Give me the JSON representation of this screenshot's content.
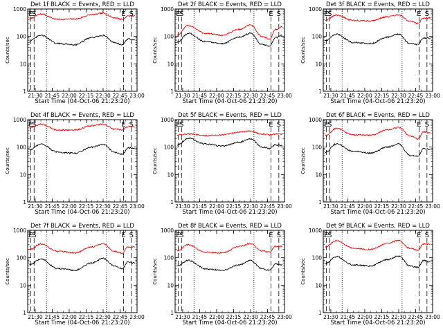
{
  "chart_data": [
    {
      "type": "line",
      "title": "Det 1f BLACK = Events, RED = LLD",
      "xlabel": "Start Time (04-Oct-06 21:23:20)",
      "ylabel": "Counts/sec",
      "y_scale": "log",
      "ylim": [
        1,
        1000
      ],
      "xlim": [
        "21:23:20",
        "23:00:00"
      ],
      "x_ticks": [
        "21:30",
        "21:45",
        "22:00",
        "22:15",
        "22:30",
        "22:45",
        "23:00"
      ],
      "y_ticks": [
        "1",
        "10",
        "100",
        "1000"
      ],
      "markers": {
        "solid_dashed": [
          "21:26",
          "21:29",
          "22:48",
          "22:55"
        ],
        "dotted": [
          "21:40",
          "22:33"
        ],
        "letters": [
          {
            "text": "E",
            "at": "21:26"
          },
          {
            "text": "S",
            "at": "21:29"
          },
          {
            "text": "E",
            "at": "22:48"
          },
          {
            "text": "S",
            "at": "22:55"
          }
        ]
      },
      "series": [
        {
          "name": "LLD",
          "color": "#ff0000",
          "x": [
            "21:25",
            "21:35",
            "21:50",
            "22:05",
            "22:20",
            "22:30",
            "22:40",
            "22:47",
            "22:52",
            "22:58"
          ],
          "values": [
            450,
            650,
            420,
            430,
            620,
            700,
            480,
            420,
            560,
            560
          ]
        },
        {
          "name": "Events",
          "color": "#000000",
          "x": [
            "21:25",
            "21:35",
            "21:50",
            "22:05",
            "22:20",
            "22:30",
            "22:40",
            "22:47",
            "22:52",
            "22:58"
          ],
          "values": [
            70,
            110,
            55,
            50,
            90,
            110,
            60,
            50,
            80,
            75
          ]
        }
      ]
    },
    {
      "type": "line",
      "title": "Det 2f BLACK = Events, RED = LLD",
      "xlabel": "Start Time (04-Oct-06 21:23:20)",
      "ylabel": "Counts/sec",
      "y_scale": "log",
      "ylim": [
        1,
        1000
      ],
      "xlim": [
        "21:23:20",
        "23:00:00"
      ],
      "x_ticks": [
        "21:30",
        "21:45",
        "22:00",
        "22:15",
        "22:30",
        "22:45",
        "23:00"
      ],
      "y_ticks": [
        "1",
        "10",
        "100",
        "1000"
      ],
      "markers": {
        "solid_dashed": [
          "21:26",
          "21:29",
          "22:48",
          "22:55"
        ],
        "dotted": [
          "21:40",
          "22:33"
        ],
        "letters": [
          {
            "text": "E",
            "at": "21:26"
          },
          {
            "text": "S",
            "at": "21:29"
          },
          {
            "text": "E",
            "at": "22:48"
          },
          {
            "text": "S",
            "at": "22:55"
          }
        ]
      },
      "series": [
        {
          "name": "LLD",
          "color": "#ff0000",
          "x": [
            "21:25",
            "21:35",
            "21:50",
            "22:05",
            "22:20",
            "22:30",
            "22:40",
            "22:47",
            "22:52",
            "22:58"
          ],
          "values": [
            110,
            250,
            130,
            110,
            180,
            260,
            100,
            80,
            180,
            220
          ]
        },
        {
          "name": "Events",
          "color": "#000000",
          "x": [
            "21:25",
            "21:35",
            "21:50",
            "22:05",
            "22:20",
            "22:30",
            "22:40",
            "22:47",
            "22:52",
            "22:58"
          ],
          "values": [
            60,
            130,
            65,
            55,
            95,
            130,
            50,
            45,
            90,
            110
          ]
        }
      ]
    },
    {
      "type": "line",
      "title": "Det 3f BLACK = Events, RED = LLD",
      "xlabel": "Start Time (04-Oct-06 21:23:20)",
      "ylabel": "Counts/sec",
      "y_scale": "log",
      "ylim": [
        1,
        1000
      ],
      "xlim": [
        "21:23:20",
        "23:00:00"
      ],
      "x_ticks": [
        "21:30",
        "21:45",
        "22:00",
        "22:15",
        "22:30",
        "22:45",
        "23:00"
      ],
      "y_ticks": [
        "1",
        "10",
        "100",
        "1000"
      ],
      "markers": {
        "solid_dashed": [
          "21:26",
          "21:29",
          "22:48",
          "22:55"
        ],
        "dotted": [
          "21:40",
          "22:33"
        ],
        "letters": [
          {
            "text": "E",
            "at": "21:26"
          },
          {
            "text": "S",
            "at": "21:29"
          },
          {
            "text": "E",
            "at": "22:48"
          },
          {
            "text": "S",
            "at": "22:55"
          }
        ]
      },
      "series": [
        {
          "name": "LLD",
          "color": "#ff0000",
          "x": [
            "21:25",
            "21:35",
            "21:50",
            "22:05",
            "22:20",
            "22:30",
            "22:40",
            "22:47",
            "22:52",
            "22:58"
          ],
          "values": [
            380,
            600,
            380,
            370,
            520,
            600,
            360,
            300,
            470,
            480
          ]
        },
        {
          "name": "Events",
          "color": "#000000",
          "x": [
            "21:25",
            "21:35",
            "21:50",
            "22:05",
            "22:20",
            "22:30",
            "22:40",
            "22:47",
            "22:52",
            "22:58"
          ],
          "values": [
            70,
            120,
            60,
            55,
            95,
            120,
            55,
            50,
            90,
            85
          ]
        }
      ]
    },
    {
      "type": "line",
      "title": "Det 4f BLACK = Events, RED = LLD",
      "xlabel": "Start Time (04-Oct-06 21:23:20)",
      "ylabel": "Counts/sec",
      "y_scale": "log",
      "ylim": [
        1,
        1000
      ],
      "xlim": [
        "21:23:20",
        "23:00:00"
      ],
      "x_ticks": [
        "21:30",
        "21:45",
        "22:00",
        "22:15",
        "22:30",
        "22:45",
        "23:00"
      ],
      "y_ticks": [
        "1",
        "10",
        "100",
        "1000"
      ],
      "markers": {
        "solid_dashed": [
          "21:26",
          "21:29",
          "22:48",
          "22:55"
        ],
        "dotted": [
          "21:40",
          "22:33"
        ],
        "letters": [
          {
            "text": "E",
            "at": "21:26"
          },
          {
            "text": "S",
            "at": "21:29"
          },
          {
            "text": "E",
            "at": "22:48"
          },
          {
            "text": "S",
            "at": "22:55"
          }
        ]
      },
      "series": [
        {
          "name": "LLD",
          "color": "#ff0000",
          "x": [
            "21:25",
            "21:35",
            "21:50",
            "22:05",
            "22:20",
            "22:30",
            "22:40",
            "22:47",
            "22:52",
            "22:58"
          ],
          "values": [
            500,
            680,
            420,
            420,
            600,
            680,
            450,
            420,
            560,
            560
          ]
        },
        {
          "name": "Events",
          "color": "#000000",
          "x": [
            "21:25",
            "21:35",
            "21:50",
            "22:05",
            "22:20",
            "22:30",
            "22:40",
            "22:47",
            "22:52",
            "22:58"
          ],
          "values": [
            80,
            130,
            65,
            60,
            100,
            125,
            65,
            55,
            95,
            90
          ]
        }
      ]
    },
    {
      "type": "line",
      "title": "Det 5f BLACK = Events, RED = LLD",
      "xlabel": "Start Time (04-Oct-06 21:23:20)",
      "ylabel": "Counts/sec",
      "y_scale": "log",
      "ylim": [
        1,
        1000
      ],
      "xlim": [
        "21:23:20",
        "23:00:00"
      ],
      "x_ticks": [
        "21:30",
        "21:45",
        "22:00",
        "22:15",
        "22:30",
        "22:45",
        "23:00"
      ],
      "y_ticks": [
        "1",
        "10",
        "100",
        "1000"
      ],
      "markers": {
        "solid_dashed": [
          "21:26",
          "21:29",
          "22:48",
          "22:55"
        ],
        "dotted": [
          "21:40",
          "22:33"
        ],
        "letters": [
          {
            "text": "E",
            "at": "21:26"
          },
          {
            "text": "S",
            "at": "21:29"
          },
          {
            "text": "E",
            "at": "22:48"
          },
          {
            "text": "S",
            "at": "22:55"
          }
        ]
      },
      "series": [
        {
          "name": "LLD",
          "color": "#ff0000",
          "x": [
            "21:25",
            "21:35",
            "21:50",
            "22:05",
            "22:20",
            "22:30",
            "22:40",
            "22:47",
            "22:52",
            "22:58"
          ],
          "values": [
            280,
            300,
            260,
            280,
            350,
            380,
            300,
            280,
            300,
            300
          ]
        },
        {
          "name": "Events",
          "color": "#000000",
          "x": [
            "21:25",
            "21:35",
            "21:50",
            "22:05",
            "22:20",
            "22:30",
            "22:40",
            "22:47",
            "22:52",
            "22:58"
          ],
          "values": [
            120,
            210,
            130,
            110,
            150,
            200,
            100,
            90,
            120,
            115
          ]
        }
      ]
    },
    {
      "type": "line",
      "title": "Det 6f BLACK = Events, RED = LLD",
      "xlabel": "Start Time (04-Oct-06 21:23:20)",
      "ylabel": "Counts/sec",
      "y_scale": "log",
      "ylim": [
        1,
        1000
      ],
      "xlim": [
        "21:23:20",
        "23:00:00"
      ],
      "x_ticks": [
        "21:30",
        "21:45",
        "22:00",
        "22:15",
        "22:30",
        "22:45",
        "23:00"
      ],
      "y_ticks": [
        "1",
        "10",
        "100",
        "1000"
      ],
      "markers": {
        "solid_dashed": [
          "21:26",
          "21:29",
          "22:48",
          "22:55"
        ],
        "dotted": [
          "21:40",
          "22:33"
        ],
        "letters": [
          {
            "text": "E",
            "at": "21:26"
          },
          {
            "text": "S",
            "at": "21:29"
          },
          {
            "text": "E",
            "at": "22:48"
          },
          {
            "text": "S",
            "at": "22:55"
          }
        ]
      },
      "series": [
        {
          "name": "LLD",
          "color": "#ff0000",
          "x": [
            "21:25",
            "21:35",
            "21:50",
            "22:05",
            "22:20",
            "22:30",
            "22:40",
            "22:47",
            "22:52",
            "22:58"
          ],
          "values": [
            260,
            480,
            280,
            270,
            420,
            520,
            260,
            200,
            350,
            340
          ]
        },
        {
          "name": "Events",
          "color": "#000000",
          "x": [
            "21:25",
            "21:35",
            "21:50",
            "22:05",
            "22:20",
            "22:30",
            "22:40",
            "22:47",
            "22:52",
            "22:58"
          ],
          "values": [
            65,
            130,
            70,
            60,
            100,
            130,
            50,
            45,
            90,
            80
          ]
        }
      ]
    },
    {
      "type": "line",
      "title": "Det 7f BLACK = Events, RED = LLD",
      "xlabel": "Start Time (04-Oct-06 21:23:20)",
      "ylabel": "Counts/sec",
      "y_scale": "log",
      "ylim": [
        1,
        1000
      ],
      "xlim": [
        "21:23:20",
        "23:00:00"
      ],
      "x_ticks": [
        "21:30",
        "21:45",
        "22:00",
        "22:15",
        "22:30",
        "22:45",
        "23:00"
      ],
      "y_ticks": [
        "1",
        "10",
        "100",
        "1000"
      ],
      "markers": {
        "solid_dashed": [
          "21:26",
          "21:29",
          "22:48",
          "22:55"
        ],
        "dotted": [
          "21:40",
          "22:33"
        ],
        "letters": [
          {
            "text": "E",
            "at": "21:26"
          },
          {
            "text": "S",
            "at": "21:29"
          },
          {
            "text": "E",
            "at": "22:48"
          },
          {
            "text": "S",
            "at": "22:55"
          }
        ]
      },
      "series": [
        {
          "name": "LLD",
          "color": "#ff0000",
          "x": [
            "21:25",
            "21:35",
            "21:50",
            "22:05",
            "22:20",
            "22:30",
            "22:40",
            "22:47",
            "22:52",
            "22:58"
          ],
          "values": [
            200,
            320,
            170,
            150,
            250,
            330,
            170,
            150,
            250,
            250
          ]
        },
        {
          "name": "Events",
          "color": "#000000",
          "x": [
            "21:25",
            "21:35",
            "21:50",
            "22:05",
            "22:20",
            "22:30",
            "22:40",
            "22:47",
            "22:52",
            "22:58"
          ],
          "values": [
            55,
            90,
            40,
            35,
            65,
            95,
            50,
            40,
            70,
            65
          ]
        }
      ]
    },
    {
      "type": "line",
      "title": "Det 8f BLACK = Events, RED = LLD",
      "xlabel": "Start Time (04-Oct-06 21:23:20)",
      "ylabel": "Counts/sec",
      "y_scale": "log",
      "ylim": [
        1,
        1000
      ],
      "xlim": [
        "21:23:20",
        "23:00:00"
      ],
      "x_ticks": [
        "21:30",
        "21:45",
        "22:00",
        "22:15",
        "22:30",
        "22:45",
        "23:00"
      ],
      "y_ticks": [
        "1",
        "10",
        "100",
        "1000"
      ],
      "markers": {
        "solid_dashed": [
          "21:26",
          "21:29",
          "22:48",
          "22:55"
        ],
        "dotted": [
          "21:40",
          "22:33"
        ],
        "letters": [
          {
            "text": "E",
            "at": "21:26"
          },
          {
            "text": "S",
            "at": "21:29"
          },
          {
            "text": "E",
            "at": "22:48"
          },
          {
            "text": "S",
            "at": "22:55"
          }
        ]
      },
      "series": [
        {
          "name": "LLD",
          "color": "#ff0000",
          "x": [
            "21:25",
            "21:35",
            "21:50",
            "22:05",
            "22:20",
            "22:30",
            "22:40",
            "22:47",
            "22:52",
            "22:58"
          ],
          "values": [
            180,
            300,
            160,
            150,
            260,
            330,
            180,
            160,
            260,
            260
          ]
        },
        {
          "name": "Events",
          "color": "#000000",
          "x": [
            "21:25",
            "21:35",
            "21:50",
            "22:05",
            "22:20",
            "22:30",
            "22:40",
            "22:47",
            "22:52",
            "22:58"
          ],
          "values": [
            50,
            80,
            40,
            35,
            55,
            80,
            40,
            35,
            60,
            55
          ]
        }
      ]
    },
    {
      "type": "line",
      "title": "Det 9f BLACK = Events, RED = LLD",
      "xlabel": "Start Time (04-Oct-06 21:23:20)",
      "ylabel": "Counts/sec",
      "y_scale": "log",
      "ylim": [
        1,
        1000
      ],
      "xlim": [
        "21:23:20",
        "23:00:00"
      ],
      "x_ticks": [
        "21:30",
        "21:45",
        "22:00",
        "22:15",
        "22:30",
        "22:45",
        "23:00"
      ],
      "y_ticks": [
        "1",
        "10",
        "100",
        "1000"
      ],
      "markers": {
        "solid_dashed": [
          "21:26",
          "21:29",
          "22:48",
          "22:55"
        ],
        "dotted": [
          "21:40",
          "22:33"
        ],
        "letters": [
          {
            "text": "E",
            "at": "21:26"
          },
          {
            "text": "S",
            "at": "21:29"
          },
          {
            "text": "E",
            "at": "22:48"
          },
          {
            "text": "S",
            "at": "22:55"
          }
        ]
      },
      "series": [
        {
          "name": "LLD",
          "color": "#ff0000",
          "x": [
            "21:25",
            "21:35",
            "21:50",
            "22:05",
            "22:20",
            "22:30",
            "22:40",
            "22:47",
            "22:52",
            "22:58"
          ],
          "values": [
            250,
            420,
            220,
            200,
            330,
            430,
            220,
            190,
            320,
            320
          ]
        },
        {
          "name": "Events",
          "color": "#000000",
          "x": [
            "21:25",
            "21:35",
            "21:50",
            "22:05",
            "22:20",
            "22:30",
            "22:40",
            "22:47",
            "22:52",
            "22:58"
          ],
          "values": [
            60,
            110,
            55,
            50,
            85,
            115,
            50,
            45,
            80,
            70
          ]
        }
      ]
    }
  ]
}
